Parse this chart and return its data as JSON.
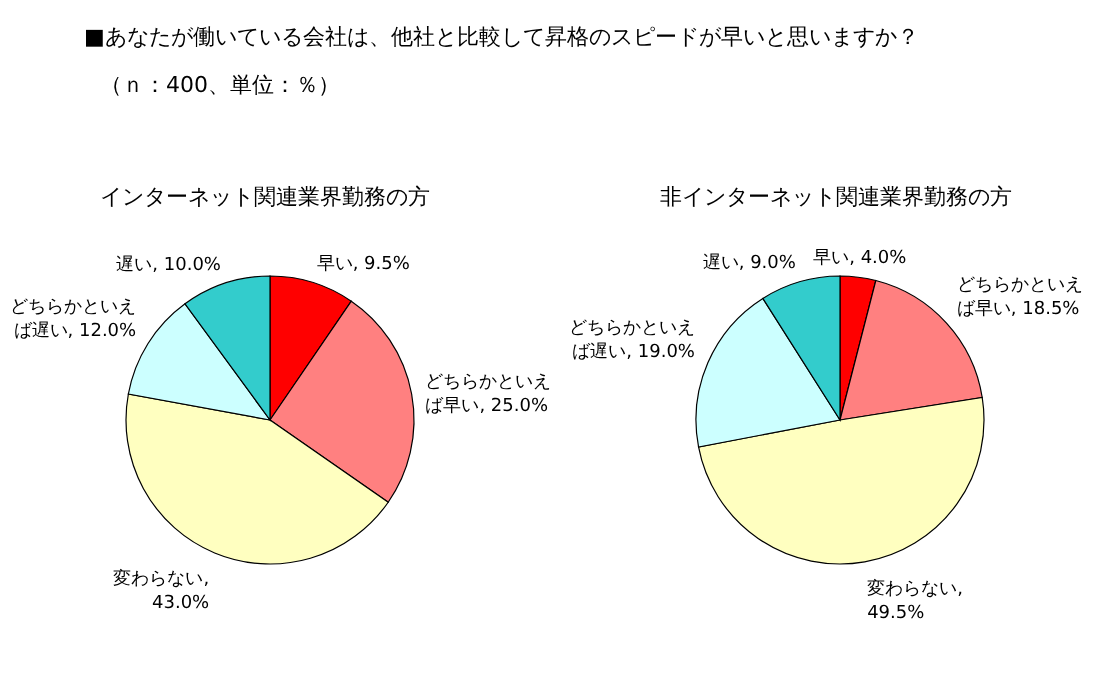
{
  "chart_data": [
    {
      "type": "pie",
      "title": "インターネット関連業界勤務の方",
      "annotations": [
        "■あなたが働いている会社は、他社と比較して昇格のスピードが早いと思いますか？",
        "（ｎ：400、単位：％）"
      ],
      "categories": [
        "早い",
        "どちらかといえば早い",
        "変わらない",
        "どちらかといえば遅い",
        "遅い"
      ],
      "values": [
        9.5,
        25.0,
        43.0,
        12.0,
        10.0
      ],
      "value_labels": [
        ", 9.5%",
        ", 25.0%",
        ", 43.0%",
        ", 12.0%",
        ", 10.0%"
      ],
      "colors": [
        "#ff0000",
        "#ff8080",
        "#ffffc0",
        "#ccffff",
        "#33cccc"
      ]
    },
    {
      "type": "pie",
      "title": "非インターネット関連業界勤務の方",
      "categories": [
        "早い",
        "どちらかといえば早い",
        "変わらない",
        "どちらかといえば遅い",
        "遅い"
      ],
      "values": [
        4.0,
        18.5,
        49.5,
        19.0,
        9.0
      ],
      "value_labels": [
        ", 4.0%",
        ", 18.5%",
        ", 49.5%",
        ", 19.0%",
        ", 9.0%"
      ],
      "colors": [
        "#ff0000",
        "#ff8080",
        "#ffffc0",
        "#ccffff",
        "#33cccc"
      ]
    }
  ]
}
